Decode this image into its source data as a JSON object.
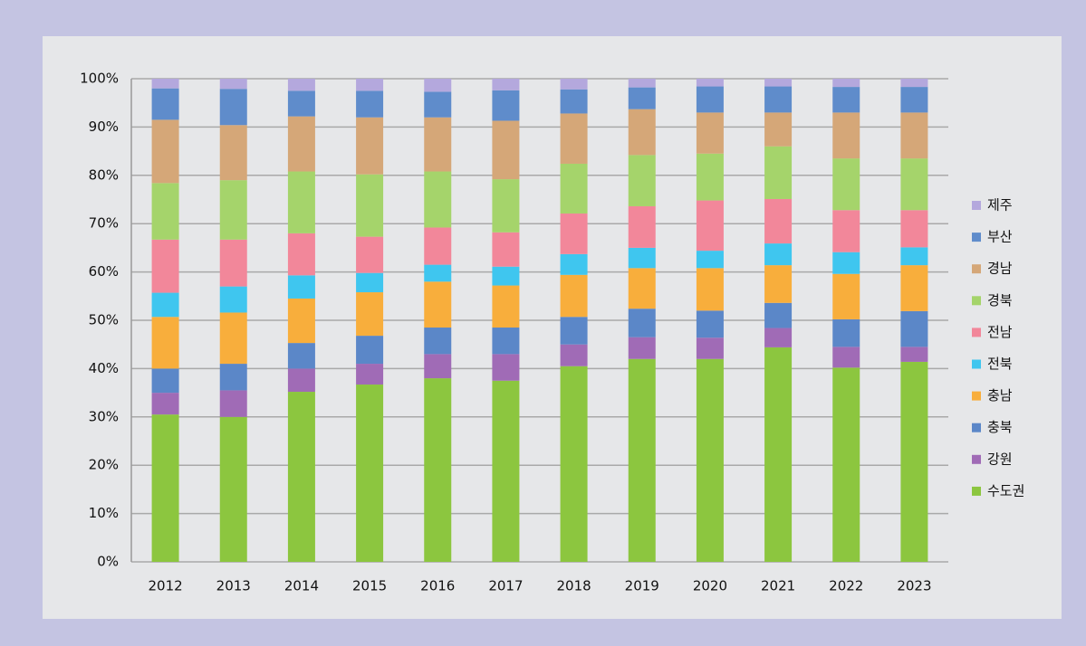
{
  "chart_data": {
    "type": "stacked_bar",
    "categories": [
      "2012",
      "2013",
      "2014",
      "2015",
      "2016",
      "2017",
      "2018",
      "2019",
      "2020",
      "2021",
      "2022",
      "2023"
    ],
    "series": [
      {
        "name": "수도권",
        "color": "#8cc63f",
        "values": [
          30.5,
          30,
          35.2,
          36.7,
          38,
          37.5,
          40.5,
          42,
          42,
          44.4,
          40.2,
          41.4
        ]
      },
      {
        "name": "강원",
        "color": "#a06bb6",
        "values": [
          4.5,
          5.5,
          4.8,
          4.3,
          5,
          5.5,
          4.5,
          4.5,
          4.4,
          4,
          4.3,
          3.1
        ]
      },
      {
        "name": "충북",
        "color": "#5b87c8",
        "values": [
          5,
          5.5,
          5.3,
          5.8,
          5.5,
          5.5,
          5.7,
          5.9,
          5.6,
          5.2,
          5.7,
          7.4
        ]
      },
      {
        "name": "충남",
        "color": "#f8ae3c",
        "values": [
          10.7,
          10.6,
          9.2,
          9,
          9.5,
          8.7,
          8.7,
          8.4,
          8.8,
          7.8,
          9.4,
          9.5
        ]
      },
      {
        "name": "전북",
        "color": "#3fc6ef",
        "values": [
          5,
          5.4,
          4.8,
          4,
          3.5,
          3.9,
          4.3,
          4.2,
          3.6,
          4.5,
          4.5,
          3.7
        ]
      },
      {
        "name": "전남",
        "color": "#f2879a",
        "values": [
          11,
          9.7,
          8.7,
          7.5,
          7.7,
          7.1,
          8.4,
          8.6,
          10.4,
          9.2,
          8.7,
          7.7
        ]
      },
      {
        "name": "경북",
        "color": "#a5d46b",
        "values": [
          11.7,
          12.3,
          12.8,
          12.9,
          11.6,
          11,
          10.3,
          10.6,
          9.7,
          10.9,
          10.7,
          10.7
        ]
      },
      {
        "name": "경남",
        "color": "#d5a778",
        "values": [
          13.1,
          11.4,
          11.4,
          11.8,
          11.2,
          12.1,
          10.4,
          9.5,
          8.5,
          7,
          9.5,
          9.5
        ]
      },
      {
        "name": "부산",
        "color": "#5f8ccb",
        "values": [
          6.5,
          7.5,
          5.3,
          5.5,
          5.3,
          6.3,
          5,
          4.5,
          5.4,
          5.4,
          5.3,
          5.3
        ]
      },
      {
        "name": "제주",
        "color": "#b4a8dd",
        "values": [
          2,
          2.1,
          2.5,
          2.5,
          2.7,
          2.4,
          2.2,
          1.8,
          1.6,
          1.6,
          1.7,
          1.7
        ]
      }
    ],
    "ylim": [
      0,
      100
    ],
    "yticks": [
      {
        "value": 0,
        "label": "0%"
      },
      {
        "value": 10,
        "label": "10%"
      },
      {
        "value": 20,
        "label": "20%"
      },
      {
        "value": 30,
        "label": "30%"
      },
      {
        "value": 40,
        "label": "40%"
      },
      {
        "value": 50,
        "label": "50%"
      },
      {
        "value": 60,
        "label": "60%"
      },
      {
        "value": 70,
        "label": "70%"
      },
      {
        "value": 80,
        "label": "80%"
      },
      {
        "value": 90,
        "label": "90%"
      },
      {
        "value": 100,
        "label": "100%"
      }
    ],
    "grid": true,
    "legend": "right"
  }
}
